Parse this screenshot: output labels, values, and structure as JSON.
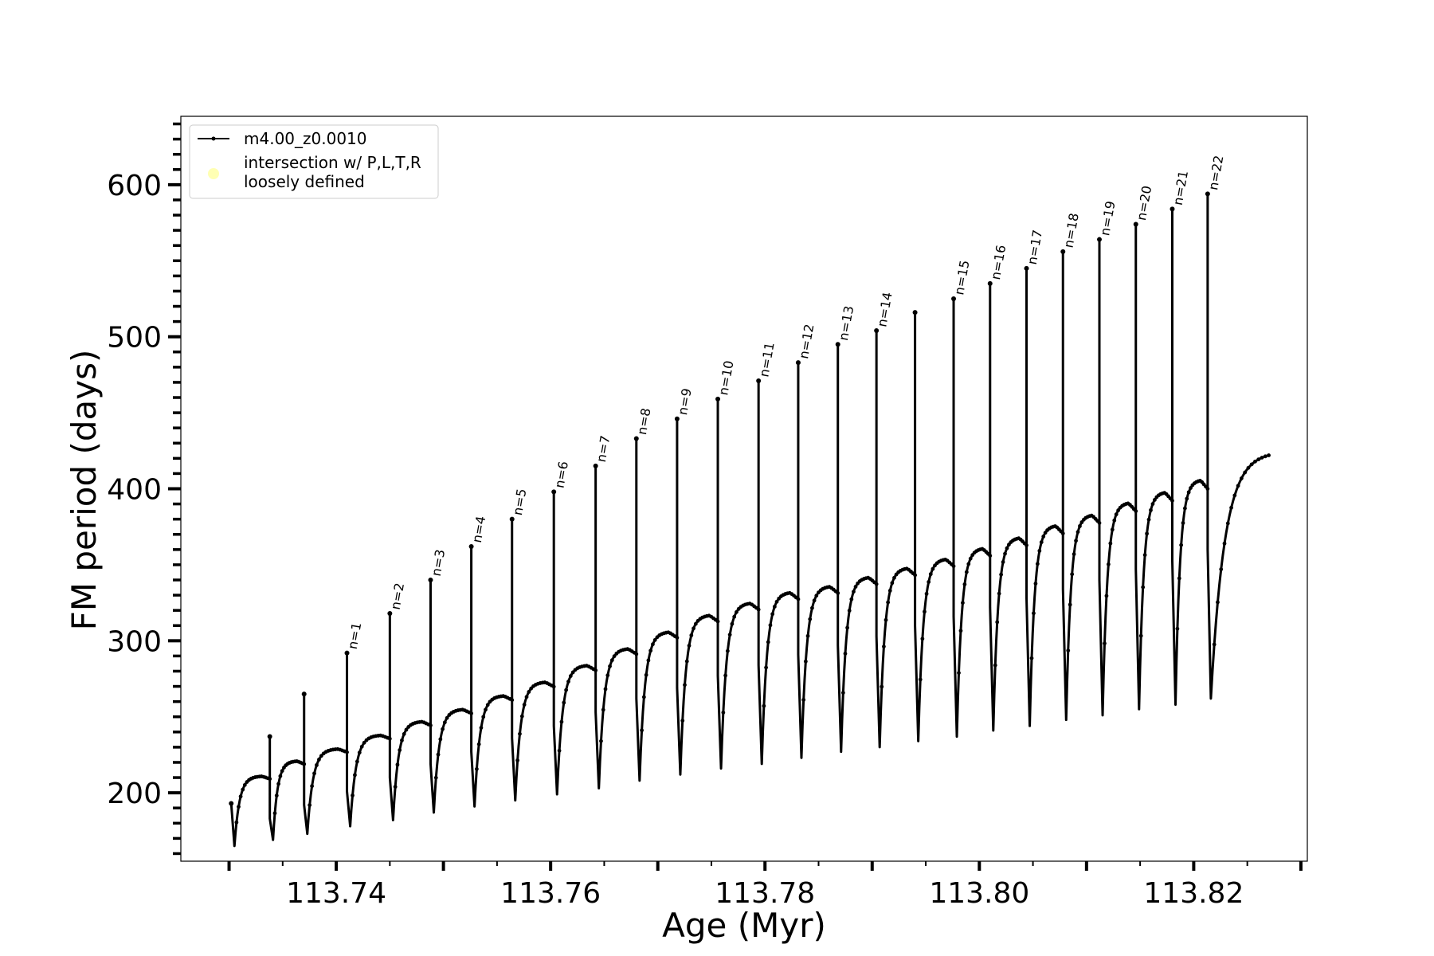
{
  "chart_data": {
    "type": "line",
    "xlabel": "Age (Myr)",
    "ylabel": "FM period (days)",
    "xlim": [
      113.7255,
      113.8306
    ],
    "ylim": [
      155,
      645
    ],
    "x_major_ticks": [
      113.73,
      113.74,
      113.75,
      113.76,
      113.77,
      113.78,
      113.79,
      113.8,
      113.81,
      113.82,
      113.83
    ],
    "x_tick_labels": [
      {
        "value": 113.74,
        "label": "113.74"
      },
      {
        "value": 113.76,
        "label": "113.76"
      },
      {
        "value": 113.78,
        "label": "113.78"
      },
      {
        "value": 113.8,
        "label": "113.80"
      },
      {
        "value": 113.82,
        "label": "113.82"
      }
    ],
    "y_tick_labels": [
      {
        "value": 200,
        "label": "200"
      },
      {
        "value": 300,
        "label": "300"
      },
      {
        "value": 400,
        "label": "400"
      },
      {
        "value": 500,
        "label": "500"
      },
      {
        "value": 600,
        "label": "600"
      }
    ],
    "y_minor_step": 10,
    "grid": false,
    "legend": {
      "position": "top-left",
      "entries": [
        {
          "label": "m4.00_z0.0010",
          "marker": "line-dot",
          "color": "#000000"
        },
        {
          "label": "intersection w/ P,L,T,R\nloosely defined",
          "marker": "circle",
          "color": "#ffffb3"
        }
      ]
    },
    "series": [
      {
        "name": "m4.00_z0.0010",
        "color": "#000000",
        "pulses": [
          {
            "x": 113.7302,
            "base": 193,
            "min": 165,
            "plateau": 211,
            "spike": 193,
            "label": ""
          },
          {
            "x": 113.7338,
            "base": 183,
            "min": 169,
            "plateau": 221,
            "spike": 237,
            "label": ""
          },
          {
            "x": 113.737,
            "base": 192,
            "min": 173,
            "plateau": 229,
            "spike": 265,
            "label": ""
          },
          {
            "x": 113.741,
            "base": 201,
            "min": 178,
            "plateau": 238,
            "spike": 292,
            "label": "n=1"
          },
          {
            "x": 113.745,
            "base": 210,
            "min": 182,
            "plateau": 247,
            "spike": 318,
            "label": "n=2"
          },
          {
            "x": 113.7488,
            "base": 219,
            "min": 187,
            "plateau": 255,
            "spike": 340,
            "label": "n=3"
          },
          {
            "x": 113.7526,
            "base": 227,
            "min": 191,
            "plateau": 264,
            "spike": 362,
            "label": "n=4"
          },
          {
            "x": 113.7564,
            "base": 236,
            "min": 195,
            "plateau": 273,
            "spike": 380,
            "label": "n=5"
          },
          {
            "x": 113.7603,
            "base": 244,
            "min": 199,
            "plateau": 284,
            "spike": 398,
            "label": "n=6"
          },
          {
            "x": 113.7642,
            "base": 253,
            "min": 203,
            "plateau": 295,
            "spike": 415,
            "label": "n=7"
          },
          {
            "x": 113.768,
            "base": 262,
            "min": 208,
            "plateau": 306,
            "spike": 433,
            "label": "n=8"
          },
          {
            "x": 113.7718,
            "base": 269,
            "min": 212,
            "plateau": 317,
            "spike": 446,
            "label": "n=9"
          },
          {
            "x": 113.7756,
            "base": 277,
            "min": 216,
            "plateau": 325,
            "spike": 459,
            "label": "n=10"
          },
          {
            "x": 113.7794,
            "base": 284,
            "min": 219,
            "plateau": 332,
            "spike": 471,
            "label": "n=11"
          },
          {
            "x": 113.7831,
            "base": 291,
            "min": 223,
            "plateau": 336,
            "spike": 483,
            "label": "n=12"
          },
          {
            "x": 113.7868,
            "base": 297,
            "min": 227,
            "plateau": 342,
            "spike": 495,
            "label": "n=13"
          },
          {
            "x": 113.7904,
            "base": 303,
            "min": 230,
            "plateau": 348,
            "spike": 504,
            "label": "n=14"
          },
          {
            "x": 113.794,
            "base": 310,
            "min": 234,
            "plateau": 354,
            "spike": 516,
            "label": ""
          },
          {
            "x": 113.7976,
            "base": 316,
            "min": 237,
            "plateau": 361,
            "spike": 525,
            "label": "n=15"
          },
          {
            "x": 113.801,
            "base": 322,
            "min": 241,
            "plateau": 368,
            "spike": 535,
            "label": "n=16"
          },
          {
            "x": 113.8044,
            "base": 328,
            "min": 244,
            "plateau": 376,
            "spike": 545,
            "label": "n=17"
          },
          {
            "x": 113.8078,
            "base": 334,
            "min": 248,
            "plateau": 383,
            "spike": 556,
            "label": "n=18"
          },
          {
            "x": 113.8112,
            "base": 340,
            "min": 251,
            "plateau": 391,
            "spike": 564,
            "label": "n=19"
          },
          {
            "x": 113.8146,
            "base": 347,
            "min": 255,
            "plateau": 398,
            "spike": 574,
            "label": "n=20"
          },
          {
            "x": 113.818,
            "base": 353,
            "min": 258,
            "plateau": 406,
            "spike": 584,
            "label": "n=21"
          },
          {
            "x": 113.8213,
            "base": 360,
            "min": 262,
            "plateau": 414,
            "spike": 594,
            "label": "n=22"
          }
        ],
        "end": {
          "x": 113.827,
          "y": 422
        }
      }
    ]
  }
}
